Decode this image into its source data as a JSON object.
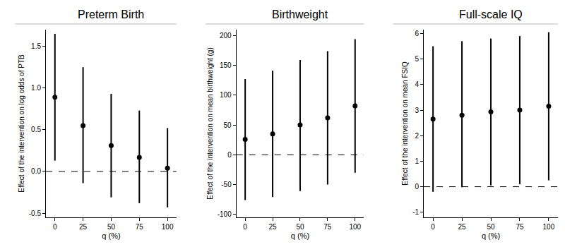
{
  "chart_data": [
    {
      "type": "scatter",
      "title": "Preterm Birth",
      "x_label": "q (%)",
      "y_label": "Effect of the intervention on log odds of PTB",
      "x": [
        0,
        25,
        50,
        75,
        100
      ],
      "values": [
        0.89,
        0.55,
        0.31,
        0.17,
        0.04
      ],
      "ci_lower": [
        0.13,
        -0.14,
        -0.31,
        -0.38,
        -0.43
      ],
      "ci_upper": [
        1.65,
        1.25,
        0.93,
        0.73,
        0.52
      ],
      "reference_y": 0,
      "color": "#000000",
      "marker": "circle",
      "grid": false,
      "xlim": [
        -8,
        108
      ],
      "xticks": [
        0,
        25,
        50,
        75,
        100
      ],
      "ylim": [
        -0.55,
        1.7
      ],
      "yticks": [
        -0.5,
        {
          "value": 0,
          "label": "0.0"
        },
        0.5,
        {
          "value": 1,
          "label": "1.0"
        },
        1.5
      ]
    },
    {
      "type": "scatter",
      "title": "Birthweight",
      "x_label": "q (%)",
      "y_label": "Effect of the intervention on mean birthweight (g)",
      "x": [
        0,
        25,
        50,
        75,
        100
      ],
      "values": [
        26,
        35,
        50,
        62,
        82
      ],
      "ci_lower": [
        -76,
        -71,
        -61,
        -50,
        -30
      ],
      "ci_upper": [
        127,
        141,
        159,
        174,
        194
      ],
      "reference_y": 0,
      "color": "#000000",
      "marker": "circle",
      "grid": false,
      "xlim": [
        -8,
        108
      ],
      "xticks": [
        0,
        25,
        50,
        75,
        100
      ],
      "ylim": [
        -105,
        210
      ],
      "yticks": [
        -100,
        -50,
        0,
        50,
        100,
        150,
        200
      ]
    },
    {
      "type": "scatter",
      "title": "Full-scale IQ",
      "x_label": "q (%)",
      "y_label": "Effect of the intervention on mean FSIQ",
      "x": [
        0,
        25,
        50,
        75,
        100
      ],
      "values": [
        2.65,
        2.8,
        2.93,
        3.0,
        3.15
      ],
      "ci_lower": [
        -0.2,
        -0.02,
        0.05,
        0.1,
        0.25
      ],
      "ci_upper": [
        5.5,
        5.7,
        5.8,
        5.9,
        6.05
      ],
      "reference_y": 0,
      "color": "#000000",
      "marker": "circle",
      "grid": false,
      "xlim": [
        -8,
        108
      ],
      "xticks": [
        0,
        25,
        50,
        75,
        100
      ],
      "ylim": [
        -1.2,
        6.15
      ],
      "yticks": [
        -1,
        0,
        1,
        2,
        3,
        4,
        5,
        6
      ]
    }
  ]
}
